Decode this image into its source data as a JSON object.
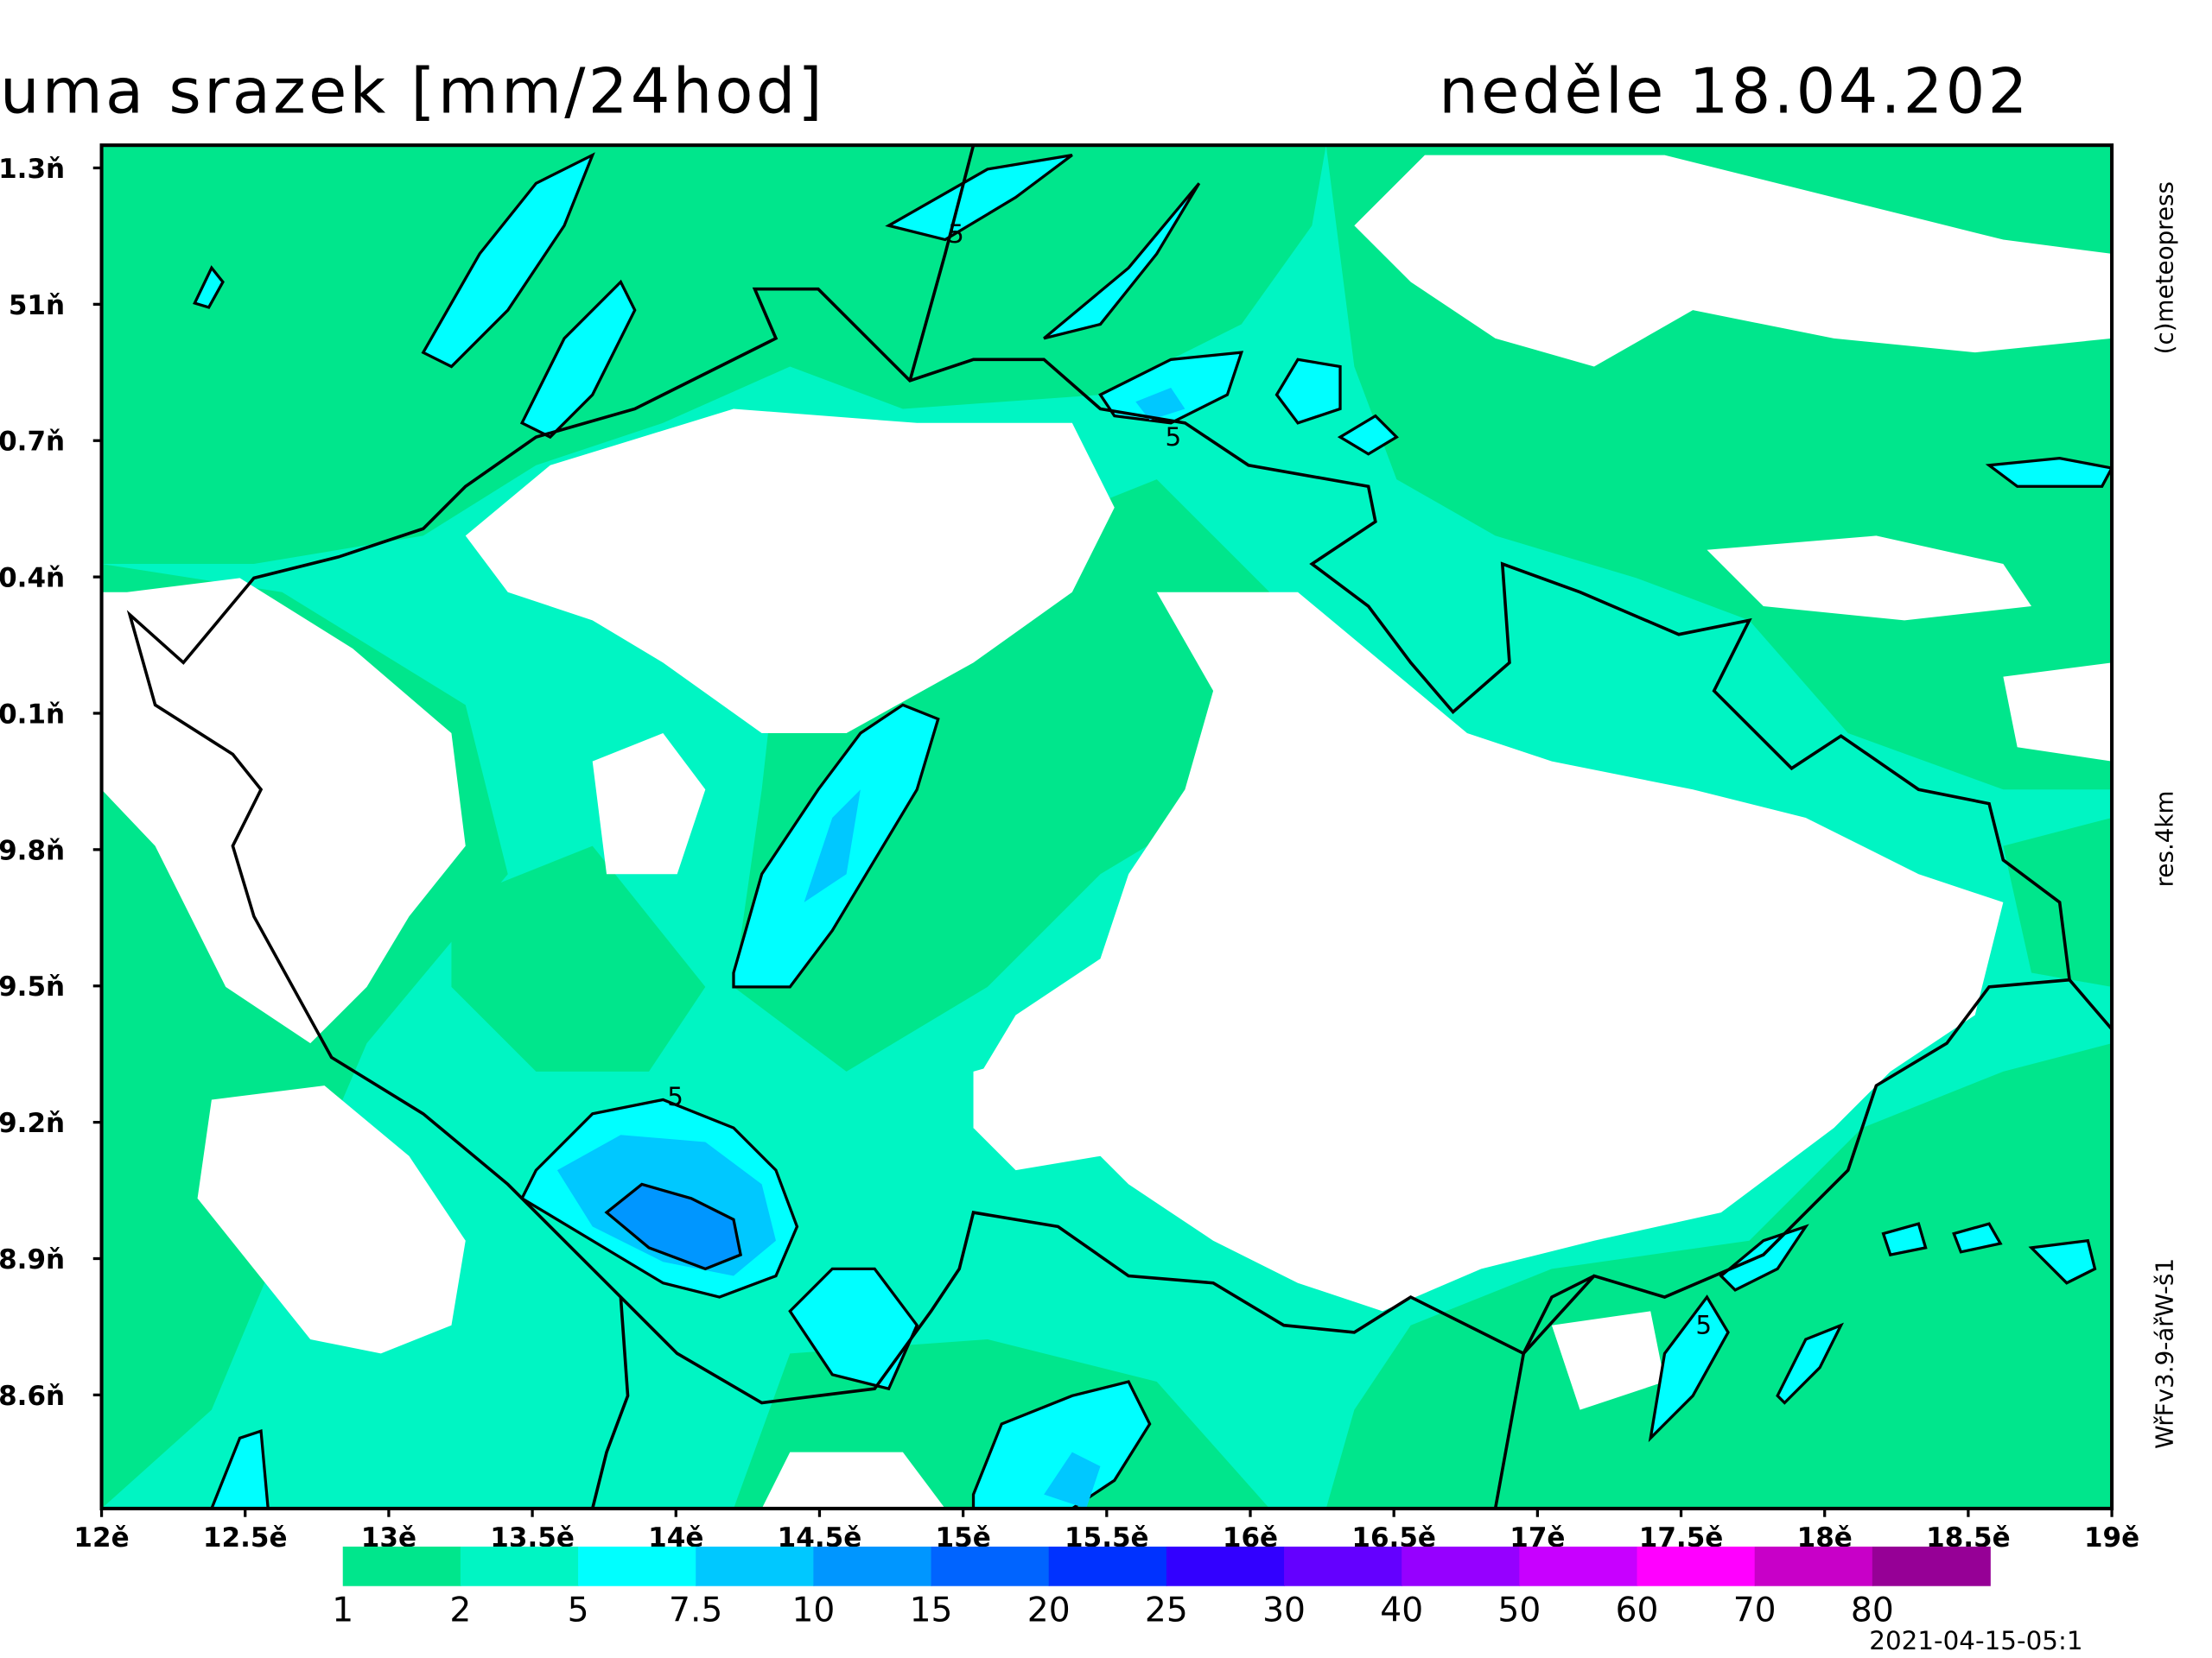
{
  "title": "uma srazek [mm/24hod]",
  "date": "neděle 18.04.202",
  "credits": [
    "(c)meteopress",
    "res.4km",
    "WřFv3.9-ářW-š1"
  ],
  "timestamp": "2021-04-15-05:1",
  "map": {
    "xlim": [
      12,
      19
    ],
    "ylim": [
      48.35,
      51.35
    ],
    "xticks": [
      {
        "value": 12,
        "label": "12ě"
      },
      {
        "value": 12.5,
        "label": "12.5ě"
      },
      {
        "value": 13,
        "label": "13ě"
      },
      {
        "value": 13.5,
        "label": "13.5ě"
      },
      {
        "value": 14,
        "label": "14ě"
      },
      {
        "value": 14.5,
        "label": "14.5ě"
      },
      {
        "value": 15,
        "label": "15ě"
      },
      {
        "value": 15.5,
        "label": "15.5ě"
      },
      {
        "value": 16,
        "label": "16ě"
      },
      {
        "value": 16.5,
        "label": "16.5ě"
      },
      {
        "value": 17,
        "label": "17ě"
      },
      {
        "value": 17.5,
        "label": "17.5ě"
      },
      {
        "value": 18,
        "label": "18ě"
      },
      {
        "value": 18.5,
        "label": "18.5ě"
      },
      {
        "value": 19,
        "label": "19ě"
      }
    ],
    "yticks": [
      {
        "value": 51.3,
        "label": "1.3ň"
      },
      {
        "value": 51,
        "label": "51ň"
      },
      {
        "value": 50.7,
        "label": "0.7ň"
      },
      {
        "value": 50.4,
        "label": "0.4ň"
      },
      {
        "value": 50.1,
        "label": "0.1ň"
      },
      {
        "value": 49.8,
        "label": "9.8ň"
      },
      {
        "value": 49.5,
        "label": "9.5ň"
      },
      {
        "value": 49.2,
        "label": "9.2ň"
      },
      {
        "value": 48.9,
        "label": "8.9ň"
      },
      {
        "value": 48.6,
        "label": "8.6ň"
      }
    ],
    "contour_labels": [
      "5",
      "5",
      "5",
      "5"
    ]
  },
  "legend": {
    "levels": [
      1,
      2,
      5,
      7.5,
      10,
      15,
      20,
      25,
      30,
      40,
      50,
      60,
      70,
      80
    ],
    "colors": [
      "#00e68c",
      "#00f5c3",
      "#00ffff",
      "#00c8ff",
      "#0096ff",
      "#0064ff",
      "#0032ff",
      "#3200ff",
      "#6400ff",
      "#9600ff",
      "#c800ff",
      "#ff00ff",
      "#c800c8",
      "#960096"
    ]
  }
}
